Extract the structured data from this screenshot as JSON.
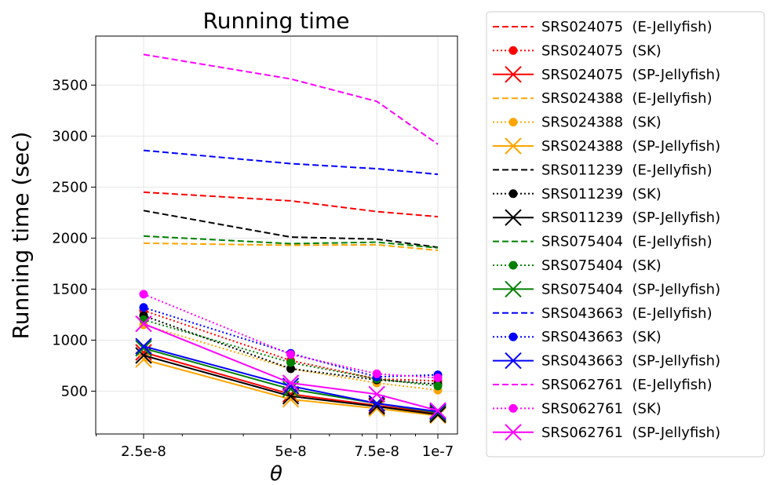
{
  "chart_data": {
    "type": "line",
    "title": "Running time",
    "xlabel": "θ",
    "ylabel": "Running time (sec)",
    "x": [
      2.5e-08,
      5e-08,
      7.5e-08,
      1e-07
    ],
    "x_tick_labels": [
      "2.5e-8",
      "5e-8",
      "7.5e-8",
      "1e-7"
    ],
    "x_scale": "log",
    "y_ticks": [
      500,
      1000,
      1500,
      2000,
      2500,
      3000,
      3500
    ],
    "ylim": [
      80,
      3980
    ],
    "grid": true,
    "legend_position": "outside right",
    "series": [
      {
        "name": "SRS024075  (E-Jellyfish)",
        "color": "#ff0000",
        "style": "dashed",
        "marker": "none",
        "values": [
          2450,
          2365,
          2260,
          2210
        ]
      },
      {
        "name": "SRS024075  (SK)",
        "color": "#ff0000",
        "style": "dotted",
        "marker": "circle",
        "values": [
          1290,
          800,
          620,
          600
        ]
      },
      {
        "name": "SRS024075  (SP-Jellyfish)",
        "color": "#ff0000",
        "style": "solid",
        "marker": "x",
        "values": [
          880,
          470,
          360,
          280
        ]
      },
      {
        "name": "SRS024388  (E-Jellyfish)",
        "color": "#ffa500",
        "style": "dashed",
        "marker": "none",
        "values": [
          1950,
          1930,
          1935,
          1880
        ]
      },
      {
        "name": "SRS024388  (SK)",
        "color": "#ffa500",
        "style": "dotted",
        "marker": "circle",
        "values": [
          1150,
          720,
          580,
          510
        ]
      },
      {
        "name": "SRS024388  (SP-Jellyfish)",
        "color": "#ffa500",
        "style": "solid",
        "marker": "x",
        "values": [
          810,
          420,
          330,
          260
        ]
      },
      {
        "name": "SRS011239  (E-Jellyfish)",
        "color": "#000000",
        "style": "dashed",
        "marker": "none",
        "values": [
          2270,
          2010,
          1990,
          1910
        ]
      },
      {
        "name": "SRS011239  (SK)",
        "color": "#000000",
        "style": "dotted",
        "marker": "circle",
        "values": [
          1240,
          720,
          610,
          570
        ]
      },
      {
        "name": "SRS011239  (SP-Jellyfish)",
        "color": "#000000",
        "style": "solid",
        "marker": "x",
        "values": [
          850,
          450,
          350,
          270
        ]
      },
      {
        "name": "SRS075404  (E-Jellyfish)",
        "color": "#008000",
        "style": "dashed",
        "marker": "none",
        "values": [
          2020,
          1945,
          1960,
          1905
        ]
      },
      {
        "name": "SRS075404  (SK)",
        "color": "#008000",
        "style": "dotted",
        "marker": "circle",
        "values": [
          1200,
          780,
          620,
          550
        ]
      },
      {
        "name": "SRS075404  (SP-Jellyfish)",
        "color": "#008000",
        "style": "solid",
        "marker": "x",
        "values": [
          920,
          520,
          380,
          290
        ]
      },
      {
        "name": "SRS043663  (E-Jellyfish)",
        "color": "#0000ff",
        "style": "dashed",
        "marker": "none",
        "values": [
          2860,
          2730,
          2680,
          2625
        ]
      },
      {
        "name": "SRS043663  (SK)",
        "color": "#0000ff",
        "style": "dotted",
        "marker": "circle",
        "values": [
          1320,
          870,
          640,
          660
        ]
      },
      {
        "name": "SRS043663  (SP-Jellyfish)",
        "color": "#0000ff",
        "style": "solid",
        "marker": "x",
        "values": [
          940,
          550,
          380,
          300
        ]
      },
      {
        "name": "SRS062761  (E-Jellyfish)",
        "color": "#ff00ff",
        "style": "dashed",
        "marker": "none",
        "values": [
          3800,
          3560,
          3340,
          2920
        ]
      },
      {
        "name": "SRS062761  (SK)",
        "color": "#ff00ff",
        "style": "dotted",
        "marker": "circle",
        "values": [
          1450,
          860,
          670,
          630
        ]
      },
      {
        "name": "SRS062761  (SP-Jellyfish)",
        "color": "#ff00ff",
        "style": "solid",
        "marker": "x",
        "values": [
          1160,
          580,
          470,
          310
        ]
      }
    ]
  }
}
